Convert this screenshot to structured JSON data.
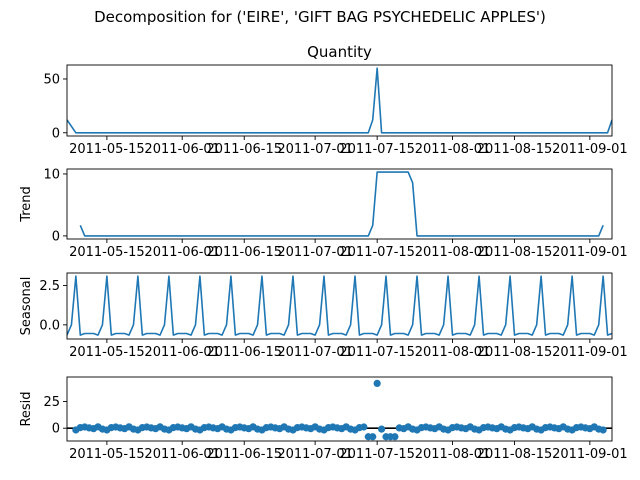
{
  "suptitle": "Decomposition for ('EIRE', 'GIFT BAG PSYCHEDELIC APPLES')",
  "chart_data": {
    "type": "line",
    "x_start": "2011-05-06",
    "x_end": "2011-09-06",
    "x_tick_labels": [
      "2011-05-15",
      "2011-06-01",
      "2011-06-15",
      "2011-07-01",
      "2011-07-15",
      "2011-08-01",
      "2011-08-15",
      "2011-09-01"
    ],
    "line_color": "#1f77b4",
    "panels": [
      {
        "name": "observed",
        "title": "Quantity",
        "ylabel": "",
        "ylim": [
          -3,
          63
        ],
        "yticks": [
          0,
          50
        ],
        "kind": "line",
        "points": [
          [
            "2011-05-06",
            12
          ],
          [
            "2011-05-08",
            0
          ],
          [
            "2011-07-13",
            0
          ],
          [
            "2011-07-14",
            12
          ],
          [
            "2011-07-15",
            60
          ],
          [
            "2011-07-16",
            0
          ],
          [
            "2011-09-05",
            0
          ],
          [
            "2011-09-06",
            12
          ]
        ]
      },
      {
        "name": "trend",
        "title": "",
        "ylabel": "Trend",
        "ylim": [
          -0.5,
          10.8
        ],
        "yticks": [
          0,
          10
        ],
        "kind": "line",
        "points": [
          [
            "2011-05-09",
            1.7
          ],
          [
            "2011-05-10",
            0
          ],
          [
            "2011-07-13",
            0
          ],
          [
            "2011-07-14",
            1.7
          ],
          [
            "2011-07-15",
            10.3
          ],
          [
            "2011-07-22",
            10.3
          ],
          [
            "2011-07-23",
            8.6
          ],
          [
            "2011-07-24",
            0
          ],
          [
            "2011-09-03",
            0
          ],
          [
            "2011-09-04",
            1.7
          ]
        ]
      },
      {
        "name": "seasonal",
        "title": "",
        "ylabel": "Seasonal",
        "ylim": [
          -0.9,
          3.3
        ],
        "yticks": [
          0.0,
          2.5
        ],
        "kind": "seasonal",
        "period_days": 7,
        "pattern": [
          3.1,
          -0.65,
          -0.55,
          -0.55,
          -0.55,
          -0.65,
          0.0
        ],
        "first_peak": "2011-05-08"
      },
      {
        "name": "resid",
        "title": "",
        "ylabel": "Resid",
        "ylim": [
          -12,
          48
        ],
        "yticks": [
          0,
          25
        ],
        "kind": "scatter",
        "zero_line": true,
        "outliers": [
          [
            "2011-07-13",
            -8
          ],
          [
            "2011-07-14",
            -8
          ],
          [
            "2011-07-15",
            42
          ],
          [
            "2011-07-17",
            -8
          ],
          [
            "2011-07-18",
            -8
          ],
          [
            "2011-07-19",
            -8
          ]
        ]
      }
    ]
  }
}
